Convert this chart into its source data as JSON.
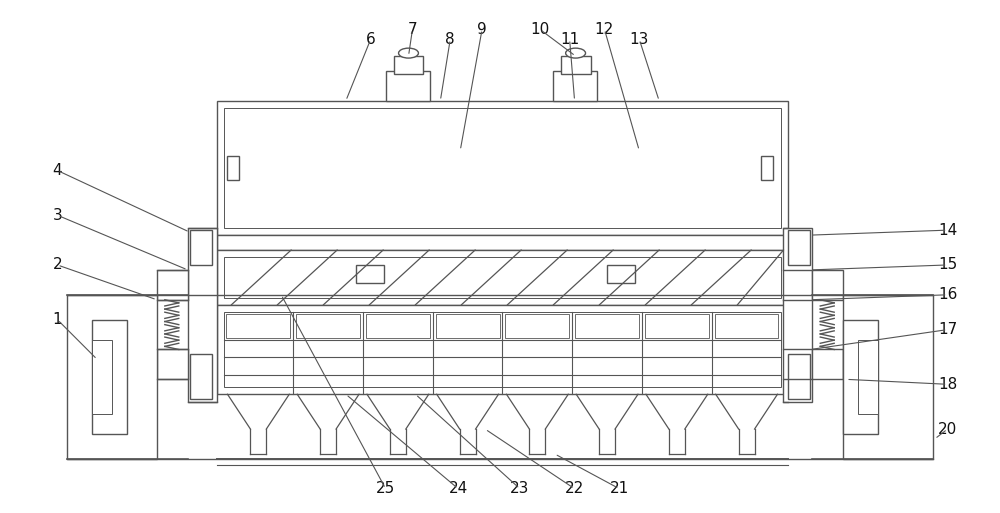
{
  "bg_color": "#ffffff",
  "line_color": "#555555",
  "line_width": 1.0,
  "fig_w": 10.0,
  "fig_h": 5.13,
  "dpi": 100,
  "label_fontsize": 11,
  "label_color": "#111111"
}
